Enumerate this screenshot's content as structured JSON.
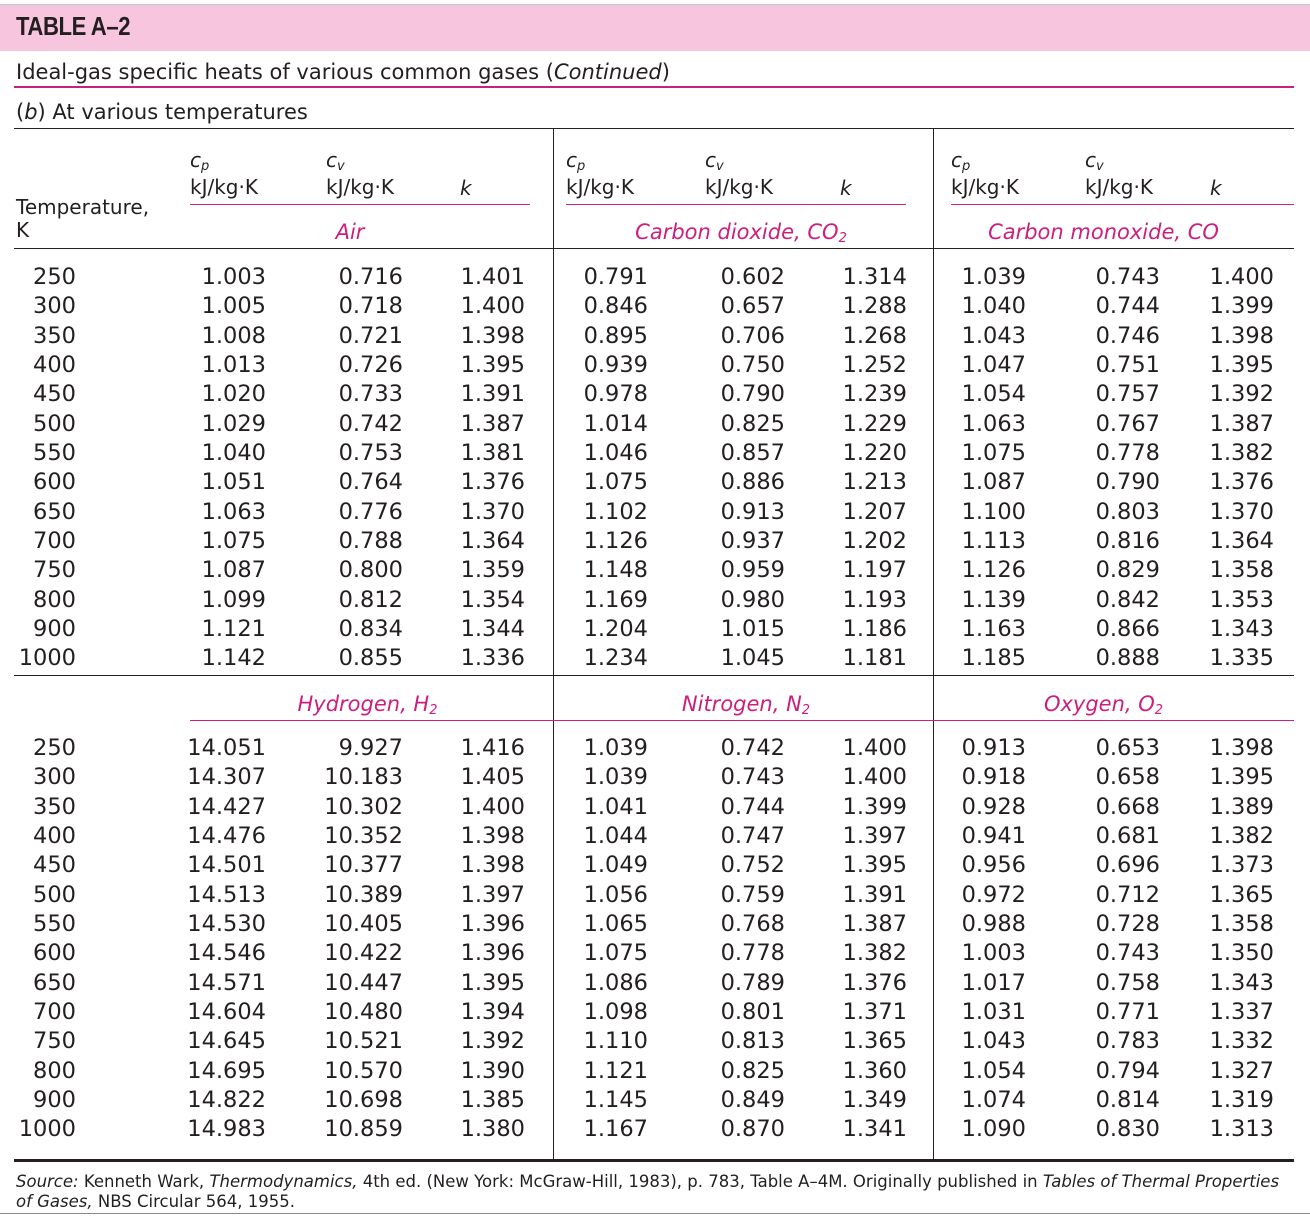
{
  "table_label": "TABLE A–2",
  "caption_main": "Ideal-gas specific heats of various common gases (",
  "caption_continued": "Continued",
  "caption_close": ")",
  "subtitle_b": "b",
  "subtitle_rest": ") At various temperatures",
  "temperature_header": "Temperature,",
  "temperature_unit": "K",
  "col_headers": {
    "cp_symbol": "c",
    "cp_sub": "p",
    "cv_symbol": "c",
    "cv_sub": "v",
    "unit": "kJ/kg·K",
    "k": "k"
  },
  "gases_top": {
    "g1": {
      "name": "Air",
      "sub": ""
    },
    "g2": {
      "name": "Carbon dioxide, CO",
      "sub": "2"
    },
    "g3": {
      "name": "Carbon monoxide, CO",
      "sub": ""
    }
  },
  "gases_bottom": {
    "g1": {
      "name": "Hydrogen, H",
      "sub": "2"
    },
    "g2": {
      "name": "Nitrogen, N",
      "sub": "2"
    },
    "g3": {
      "name": "Oxygen, O",
      "sub": "2"
    }
  },
  "temperatures": [
    "250",
    "300",
    "350",
    "400",
    "450",
    "500",
    "550",
    "600",
    "650",
    "700",
    "750",
    "800",
    "900",
    "1000"
  ],
  "top_block": {
    "air_cp": [
      "1.003",
      "1.005",
      "1.008",
      "1.013",
      "1.020",
      "1.029",
      "1.040",
      "1.051",
      "1.063",
      "1.075",
      "1.087",
      "1.099",
      "1.121",
      "1.142"
    ],
    "air_cv": [
      "0.716",
      "0.718",
      "0.721",
      "0.726",
      "0.733",
      "0.742",
      "0.753",
      "0.764",
      "0.776",
      "0.788",
      "0.800",
      "0.812",
      "0.834",
      "0.855"
    ],
    "air_k": [
      "1.401",
      "1.400",
      "1.398",
      "1.395",
      "1.391",
      "1.387",
      "1.381",
      "1.376",
      "1.370",
      "1.364",
      "1.359",
      "1.354",
      "1.344",
      "1.336"
    ],
    "co2_cp": [
      "0.791",
      "0.846",
      "0.895",
      "0.939",
      "0.978",
      "1.014",
      "1.046",
      "1.075",
      "1.102",
      "1.126",
      "1.148",
      "1.169",
      "1.204",
      "1.234"
    ],
    "co2_cv": [
      "0.602",
      "0.657",
      "0.706",
      "0.750",
      "0.790",
      "0.825",
      "0.857",
      "0.886",
      "0.913",
      "0.937",
      "0.959",
      "0.980",
      "1.015",
      "1.045"
    ],
    "co2_k": [
      "1.314",
      "1.288",
      "1.268",
      "1.252",
      "1.239",
      "1.229",
      "1.220",
      "1.213",
      "1.207",
      "1.202",
      "1.197",
      "1.193",
      "1.186",
      "1.181"
    ],
    "co_cp": [
      "1.039",
      "1.040",
      "1.043",
      "1.047",
      "1.054",
      "1.063",
      "1.075",
      "1.087",
      "1.100",
      "1.113",
      "1.126",
      "1.139",
      "1.163",
      "1.185"
    ],
    "co_cv": [
      "0.743",
      "0.744",
      "0.746",
      "0.751",
      "0.757",
      "0.767",
      "0.778",
      "0.790",
      "0.803",
      "0.816",
      "0.829",
      "0.842",
      "0.866",
      "0.888"
    ],
    "co_k": [
      "1.400",
      "1.399",
      "1.398",
      "1.395",
      "1.392",
      "1.387",
      "1.382",
      "1.376",
      "1.370",
      "1.364",
      "1.358",
      "1.353",
      "1.343",
      "1.335"
    ]
  },
  "bottom_block": {
    "h2_cp": [
      "14.051",
      "14.307",
      "14.427",
      "14.476",
      "14.501",
      "14.513",
      "14.530",
      "14.546",
      "14.571",
      "14.604",
      "14.645",
      "14.695",
      "14.822",
      "14.983"
    ],
    "h2_cv": [
      "9.927",
      "10.183",
      "10.302",
      "10.352",
      "10.377",
      "10.389",
      "10.405",
      "10.422",
      "10.447",
      "10.480",
      "10.521",
      "10.570",
      "10.698",
      "10.859"
    ],
    "h2_k": [
      "1.416",
      "1.405",
      "1.400",
      "1.398",
      "1.398",
      "1.397",
      "1.396",
      "1.396",
      "1.395",
      "1.394",
      "1.392",
      "1.390",
      "1.385",
      "1.380"
    ],
    "n2_cp": [
      "1.039",
      "1.039",
      "1.041",
      "1.044",
      "1.049",
      "1.056",
      "1.065",
      "1.075",
      "1.086",
      "1.098",
      "1.110",
      "1.121",
      "1.145",
      "1.167"
    ],
    "n2_cv": [
      "0.742",
      "0.743",
      "0.744",
      "0.747",
      "0.752",
      "0.759",
      "0.768",
      "0.778",
      "0.789",
      "0.801",
      "0.813",
      "0.825",
      "0.849",
      "0.870"
    ],
    "n2_k": [
      "1.400",
      "1.400",
      "1.399",
      "1.397",
      "1.395",
      "1.391",
      "1.387",
      "1.382",
      "1.376",
      "1.371",
      "1.365",
      "1.360",
      "1.349",
      "1.341"
    ],
    "o2_cp": [
      "0.913",
      "0.918",
      "0.928",
      "0.941",
      "0.956",
      "0.972",
      "0.988",
      "1.003",
      "1.017",
      "1.031",
      "1.043",
      "1.054",
      "1.074",
      "1.090"
    ],
    "o2_cv": [
      "0.653",
      "0.658",
      "0.668",
      "0.681",
      "0.696",
      "0.712",
      "0.728",
      "0.743",
      "0.758",
      "0.771",
      "0.783",
      "0.794",
      "0.814",
      "0.830"
    ],
    "o2_k": [
      "1.398",
      "1.395",
      "1.389",
      "1.382",
      "1.373",
      "1.365",
      "1.358",
      "1.350",
      "1.343",
      "1.337",
      "1.332",
      "1.327",
      "1.319",
      "1.313"
    ]
  },
  "footnote": {
    "source_label": "Source:",
    "part1": " Kenneth Wark, ",
    "book1": "Thermodynamics,",
    "part2": " 4th ed. (New York: McGraw-Hill, 1983), p. 783, Table A–4M. Originally published in ",
    "book2": "Tables of Thermal Properties of Gases,",
    "part3": " NBS Circular 564, 1955."
  },
  "colors": {
    "accent": "#cc1f7d",
    "banner": "#f7c6de",
    "text": "#231f20"
  }
}
